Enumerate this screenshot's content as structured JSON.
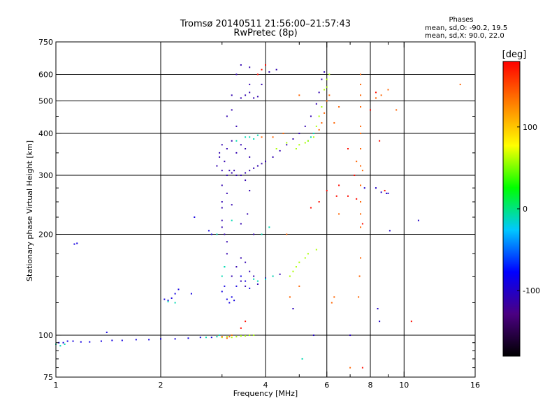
{
  "chart_data": {
    "type": "scatter",
    "title": "Tromsø 20140511 21:56:00–21:57:43",
    "subtitle": "RwPretec (8p)",
    "xlabel": "Frequency [MHz]",
    "ylabel": "Stationary phase Virtual Height [km]",
    "x_scale": "log",
    "y_scale": "log",
    "xlim": [
      1,
      16
    ],
    "ylim": [
      75,
      750
    ],
    "x_ticks": [
      1,
      2,
      4,
      6,
      8,
      10,
      16
    ],
    "x_minor_ticks": [
      3,
      5,
      7,
      9
    ],
    "y_ticks": [
      75,
      100,
      200,
      300,
      400,
      500,
      600,
      750
    ],
    "y_minor_ticks": [
      80,
      85,
      90,
      95,
      125,
      150,
      175,
      225,
      250,
      275,
      350,
      450
    ],
    "grid": true,
    "grid_x": [
      2,
      4,
      6,
      8,
      10
    ],
    "grid_y": [
      100,
      200,
      300,
      400,
      500,
      600
    ],
    "phases_legend": {
      "title": "Phases",
      "line1": "mean, sd,O: -90.2, 19.5",
      "line2": "mean, sd,X:  90.0, 22.0"
    },
    "colorbar": {
      "title": "[deg]",
      "min": -180,
      "max": 180,
      "ticks": [
        100,
        0,
        -100
      ],
      "colormap": [
        "#000000",
        "#4b0082",
        "#0000ff",
        "#00c8ff",
        "#00ff00",
        "#ffff00",
        "#ff8000",
        "#ff0000"
      ]
    },
    "series": [
      {
        "points": [
          [
            1.02,
            95
          ],
          [
            1.05,
            95
          ],
          [
            1.08,
            96
          ],
          [
            1.12,
            96
          ],
          [
            1.18,
            95.5
          ],
          [
            1.25,
            95.5
          ],
          [
            1.35,
            96
          ],
          [
            1.45,
            96.5
          ],
          [
            1.55,
            96.5
          ],
          [
            1.7,
            97
          ],
          [
            1.85,
            97
          ],
          [
            2.0,
            97.5
          ],
          [
            2.2,
            97.5
          ],
          [
            2.4,
            98
          ],
          [
            2.6,
            98.5
          ],
          [
            2.8,
            98.5
          ],
          [
            1.13,
            187
          ],
          [
            1.15,
            188
          ],
          [
            1.4,
            102
          ],
          [
            2.05,
            128
          ],
          [
            2.1,
            127
          ],
          [
            2.15,
            129
          ],
          [
            2.2,
            133
          ],
          [
            2.25,
            137
          ],
          [
            2.45,
            133
          ],
          [
            2.5,
            225
          ],
          [
            2.75,
            205
          ],
          [
            2.8,
            200
          ],
          [
            3.0,
            135
          ],
          [
            3.05,
            140
          ],
          [
            3.1,
            128
          ],
          [
            3.15,
            125
          ],
          [
            3.2,
            130
          ],
          [
            3.25,
            127
          ],
          [
            3.3,
            140
          ],
          [
            3.4,
            150
          ],
          [
            3.5,
            145
          ],
          [
            3.6,
            138
          ]
        ],
        "phase": -90
      },
      {
        "points": [
          [
            2.9,
            320
          ],
          [
            2.95,
            340
          ],
          [
            3.0,
            310
          ],
          [
            3.0,
            280
          ],
          [
            3.0,
            250
          ],
          [
            3.05,
            330
          ],
          [
            3.1,
            300
          ],
          [
            3.1,
            265
          ],
          [
            3.15,
            310
          ],
          [
            3.2,
            305
          ],
          [
            3.25,
            310
          ],
          [
            3.3,
            300
          ],
          [
            3.4,
            300
          ],
          [
            3.5,
            305
          ],
          [
            3.6,
            310
          ],
          [
            3.7,
            315
          ],
          [
            3.8,
            320
          ],
          [
            3.9,
            325
          ],
          [
            4.0,
            330
          ],
          [
            4.2,
            340
          ],
          [
            4.4,
            355
          ],
          [
            4.6,
            370
          ],
          [
            4.8,
            385
          ],
          [
            5.0,
            400
          ],
          [
            5.2,
            420
          ],
          [
            5.4,
            450
          ],
          [
            5.6,
            490
          ],
          [
            5.7,
            530
          ],
          [
            5.8,
            580
          ],
          [
            5.9,
            610
          ],
          [
            3.0,
            220
          ],
          [
            3.0,
            210
          ],
          [
            3.05,
            200
          ],
          [
            3.1,
            190
          ],
          [
            3.1,
            175
          ],
          [
            3.3,
            350
          ],
          [
            3.4,
            370
          ],
          [
            3.5,
            360
          ],
          [
            3.6,
            340
          ],
          [
            3.4,
            510
          ],
          [
            3.5,
            520
          ],
          [
            3.6,
            530
          ],
          [
            3.7,
            510
          ],
          [
            3.8,
            515
          ],
          [
            3.2,
            520
          ],
          [
            3.3,
            600
          ],
          [
            3.4,
            640
          ],
          [
            3.6,
            630
          ],
          [
            4.1,
            610
          ],
          [
            4.3,
            620
          ],
          [
            3.6,
            560
          ],
          [
            3.9,
            560
          ],
          [
            3.3,
            160
          ],
          [
            3.4,
            170
          ],
          [
            3.5,
            165
          ],
          [
            3.6,
            155
          ],
          [
            3.7,
            150
          ],
          [
            3.4,
            145
          ],
          [
            3.5,
            140
          ],
          [
            3.2,
            150
          ],
          [
            3.8,
            142
          ],
          [
            4.0,
            148
          ],
          [
            4.2,
            150
          ],
          [
            4.4,
            152
          ],
          [
            2.95,
            350
          ],
          [
            3.0,
            370
          ],
          [
            3.1,
            360
          ],
          [
            3.2,
            380
          ],
          [
            3.3,
            420
          ],
          [
            3.1,
            450
          ],
          [
            3.2,
            470
          ],
          [
            3.0,
            240
          ],
          [
            3.2,
            245
          ],
          [
            3.5,
            290
          ],
          [
            3.6,
            270
          ],
          [
            3.55,
            230
          ],
          [
            3.4,
            215
          ],
          [
            3.7,
            200
          ]
        ],
        "phase": -110
      },
      {
        "points": [
          [
            1.0,
            94
          ],
          [
            1.03,
            93
          ],
          [
            1.06,
            94
          ],
          [
            2.7,
            98.5
          ],
          [
            2.9,
            99
          ],
          [
            2.95,
            100
          ],
          [
            3.0,
            150
          ],
          [
            3.05,
            160
          ],
          [
            3.7,
            147
          ],
          [
            3.8,
            145
          ],
          [
            4.0,
            147
          ],
          [
            4.2,
            150
          ],
          [
            2.2,
            125
          ],
          [
            2.1,
            126
          ],
          [
            3.9,
            200
          ],
          [
            4.1,
            210
          ],
          [
            2.9,
            200
          ],
          [
            3.3,
            380
          ],
          [
            3.5,
            390
          ],
          [
            3.6,
            390
          ],
          [
            3.7,
            385
          ],
          [
            3.8,
            395
          ],
          [
            5.3,
            380
          ],
          [
            5.4,
            390
          ],
          [
            5.5,
            400
          ],
          [
            3.2,
            220
          ],
          [
            5.1,
            85
          ],
          [
            3.05,
            160
          ]
        ],
        "phase": -10
      },
      {
        "points": [
          [
            3.0,
            98.5
          ],
          [
            3.1,
            99
          ],
          [
            3.2,
            98.5
          ],
          [
            3.3,
            99
          ],
          [
            3.4,
            99.5
          ],
          [
            3.5,
            99.5
          ],
          [
            3.6,
            100
          ],
          [
            3.7,
            100
          ],
          [
            4.7,
            150
          ],
          [
            4.8,
            155
          ],
          [
            4.9,
            160
          ],
          [
            5.0,
            165
          ],
          [
            5.2,
            170
          ],
          [
            5.3,
            175
          ],
          [
            5.6,
            180
          ],
          [
            4.9,
            360
          ],
          [
            5.0,
            370
          ],
          [
            5.2,
            375
          ],
          [
            5.3,
            380
          ],
          [
            5.5,
            390
          ],
          [
            5.6,
            420
          ],
          [
            5.7,
            450
          ],
          [
            5.8,
            480
          ],
          [
            5.9,
            540
          ],
          [
            6.0,
            550
          ],
          [
            6.0,
            580
          ],
          [
            6.1,
            600
          ],
          [
            4.3,
            360
          ],
          [
            4.6,
            375
          ]
        ],
        "phase": 60
      },
      {
        "points": [
          [
            3.0,
            99
          ],
          [
            3.1,
            98
          ],
          [
            3.15,
            99
          ],
          [
            3.2,
            100
          ],
          [
            5.7,
            410
          ],
          [
            5.8,
            430
          ],
          [
            5.9,
            460
          ],
          [
            6.0,
            500
          ],
          [
            6.1,
            520
          ],
          [
            7.4,
            130
          ],
          [
            7.45,
            150
          ],
          [
            7.5,
            170
          ],
          [
            7.5,
            210
          ],
          [
            7.5,
            230
          ],
          [
            7.5,
            250
          ],
          [
            7.5,
            280
          ],
          [
            7.5,
            320
          ],
          [
            7.5,
            360
          ],
          [
            7.5,
            400
          ],
          [
            7.5,
            420
          ],
          [
            7.5,
            480
          ],
          [
            7.5,
            520
          ],
          [
            7.5,
            560
          ],
          [
            7.5,
            600
          ],
          [
            7.3,
            330
          ],
          [
            7.6,
            310
          ],
          [
            7.0,
            100
          ],
          [
            7.0,
            80
          ],
          [
            6.3,
            430
          ],
          [
            6.5,
            480
          ],
          [
            8.3,
            510
          ],
          [
            8.6,
            520
          ],
          [
            9.0,
            540
          ],
          [
            9.5,
            470
          ],
          [
            14.5,
            560
          ],
          [
            5.0,
            520
          ],
          [
            4.5,
            400
          ],
          [
            4.6,
            200
          ],
          [
            3.9,
            390
          ],
          [
            4.2,
            390
          ],
          [
            6.3,
            130
          ],
          [
            6.2,
            125
          ],
          [
            6.5,
            230
          ],
          [
            4.8,
            120
          ],
          [
            4.7,
            130
          ],
          [
            5.0,
            140
          ]
        ],
        "phase": 140
      },
      {
        "points": [
          [
            3.4,
            105
          ],
          [
            3.5,
            110
          ],
          [
            3.8,
            600
          ],
          [
            3.9,
            620
          ],
          [
            4.0,
            640
          ],
          [
            7.6,
            80
          ],
          [
            8.0,
            470
          ],
          [
            8.3,
            530
          ],
          [
            10.5,
            110
          ],
          [
            8.8,
            270
          ],
          [
            8.5,
            380
          ],
          [
            6.9,
            360
          ],
          [
            7.2,
            300
          ],
          [
            6.9,
            260
          ],
          [
            7.3,
            255
          ],
          [
            7.6,
            215
          ],
          [
            6.5,
            280
          ],
          [
            6.4,
            260
          ],
          [
            6.0,
            270
          ],
          [
            5.7,
            250
          ],
          [
            5.4,
            240
          ]
        ],
        "phase": 175
      },
      {
        "points": [
          [
            7.7,
            275
          ],
          [
            8.3,
            275
          ],
          [
            8.6,
            267
          ],
          [
            8.9,
            265
          ],
          [
            9.0,
            265
          ],
          [
            9.1,
            205
          ],
          [
            11.0,
            220
          ],
          [
            8.4,
            120
          ],
          [
            8.5,
            110
          ],
          [
            7.0,
            100
          ],
          [
            5.5,
            100
          ],
          [
            4.8,
            120
          ]
        ],
        "phase": -100
      }
    ]
  }
}
